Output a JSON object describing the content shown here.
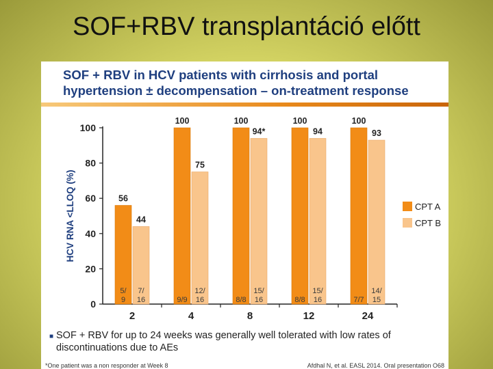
{
  "slide": {
    "title": "SOF+RBV transplantáció előtt"
  },
  "panel": {
    "heading_line1": "SOF + RBV in HCV patients with cirrhosis and portal",
    "heading_line2": "hypertension ± decompensation – on-treatment response",
    "bullet": "SOF + RBV for up to 24 weeks was generally well tolerated with low rates of discontinuations due to AEs",
    "footnote": "*One patient was a non responder at Week 8",
    "citation": "Afdhal N, et al. EASL 2014. Oral presentation O68"
  },
  "colors": {
    "cpt_a": "#f28c17",
    "cpt_b": "#f9c58c",
    "heading": "#1f3f7f"
  },
  "chart_data": {
    "type": "bar",
    "ylabel": "HCV RNA <LLOQ (%)",
    "xlabel": "",
    "ylim": [
      0,
      100
    ],
    "yticks": [
      "0",
      "20",
      "40",
      "60",
      "80",
      "100"
    ],
    "categories": [
      "2",
      "4",
      "8",
      "12",
      "24"
    ],
    "legend_position": "right",
    "series": [
      {
        "name": "CPT A",
        "values": [
          56,
          100,
          100,
          100,
          100
        ],
        "labels": [
          "56",
          "100",
          "100",
          "100",
          "100"
        ],
        "counts": [
          [
            "5/",
            "9"
          ],
          [
            "9/9"
          ],
          [
            "8/8"
          ],
          [
            "8/8"
          ],
          [
            "7/7"
          ]
        ]
      },
      {
        "name": "CPT B",
        "values": [
          44,
          75,
          94,
          94,
          93
        ],
        "labels": [
          "44",
          "75",
          "94*",
          "94",
          "93"
        ],
        "counts": [
          [
            "7/",
            "16"
          ],
          [
            "12/",
            "16"
          ],
          [
            "15/",
            "16"
          ],
          [
            "15/",
            "16"
          ],
          [
            "14/",
            "15"
          ]
        ]
      }
    ]
  }
}
